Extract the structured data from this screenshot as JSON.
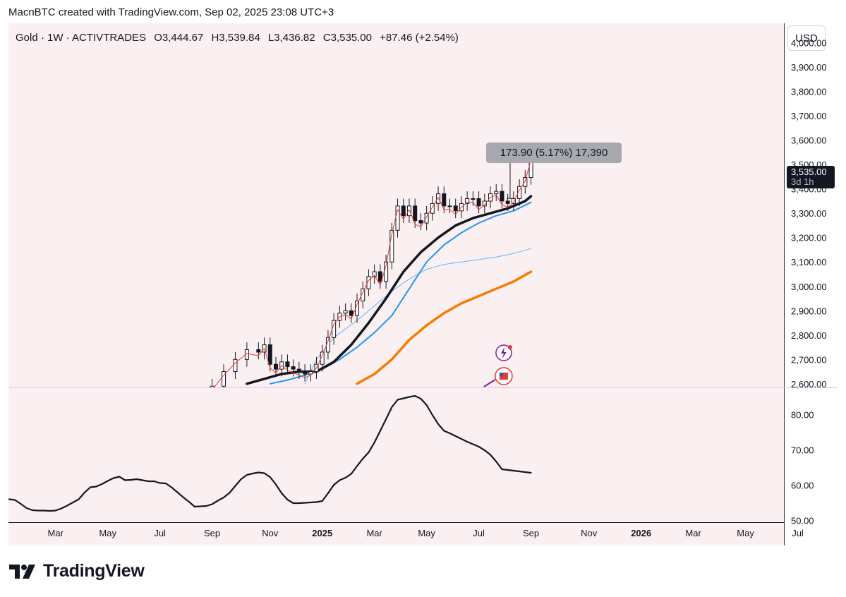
{
  "header": {
    "text": "MacnBTC created with TradingView.com, Sep 02, 2025 23:08 UTC+3"
  },
  "legend": {
    "symbol": "Gold · 1W · ACTIVTRADES",
    "open": "O3,444.67",
    "high": "H3,539.84",
    "low": "L3,436.82",
    "close": "C3,535.00",
    "change": "+87.46 (+2.54%)"
  },
  "currency_button": "USD",
  "measure_label": "173.90 (5.17%) 17,390",
  "price_tag": {
    "price": "3,535.00",
    "countdown": "3d 1h"
  },
  "brand": "TradingView",
  "colors": {
    "background": "#fbf0f1",
    "ema_fast": "#131722",
    "ema_mid": "#2196f3",
    "ema_slow": "#f57c00",
    "ema_thin": "#64b5f6",
    "signal": "#e53935",
    "oscillator": "#131722",
    "marker": "#7b1fa2"
  },
  "chart_data": [
    {
      "type": "candlestick",
      "title": "Gold · 1W · ACTIVTRADES",
      "y_ticks": [
        "2,600.00",
        "2,700.00",
        "2,800.00",
        "2,900.00",
        "3,000.00",
        "3,100.00",
        "3,200.00",
        "3,300.00",
        "3,400.00",
        "3,500.00",
        "3,600.00",
        "3,700.00",
        "3,800.00",
        "3,900.00",
        "4,000.00"
      ],
      "ylim": [
        2585,
        4080
      ],
      "x_ticks": [
        "Mar",
        "May",
        "Jul",
        "Sep",
        "Nov",
        "2025",
        "Mar",
        "May",
        "Jul",
        "Sep",
        "Nov",
        "2026",
        "Mar",
        "May",
        "Jul"
      ],
      "x_tick_weeks": [
        8,
        17,
        26,
        35,
        45,
        54,
        63,
        72,
        81,
        90,
        100,
        109,
        118,
        127,
        136
      ],
      "close_series": {
        "weeks": [
          35,
          37,
          39,
          41,
          43,
          44,
          45,
          46,
          47,
          48,
          49,
          50,
          51,
          52,
          53,
          54,
          55,
          56,
          57,
          58,
          59,
          60,
          61,
          62,
          63,
          64,
          65,
          66,
          67,
          68,
          69,
          70,
          71,
          72,
          73,
          74,
          75,
          76,
          77,
          78,
          79,
          80,
          81,
          82,
          83,
          84,
          85,
          86,
          87,
          88,
          89,
          90
        ],
        "values": [
          2590,
          2650,
          2700,
          2740,
          2730,
          2760,
          2680,
          2660,
          2690,
          2670,
          2660,
          2650,
          2640,
          2650,
          2680,
          2730,
          2790,
          2860,
          2890,
          2900,
          2880,
          2940,
          2990,
          3040,
          3060,
          3020,
          3100,
          3230,
          3330,
          3290,
          3330,
          3270,
          3260,
          3300,
          3340,
          3380,
          3330,
          3330,
          3310,
          3340,
          3360,
          3360,
          3330,
          3350,
          3380,
          3390,
          3350,
          3340,
          3360,
          3410,
          3447,
          3535
        ]
      },
      "ema_fast": {
        "weeks": [
          41,
          44,
          47,
          50,
          53,
          56,
          59,
          62,
          65,
          68,
          71,
          74,
          77,
          80,
          83,
          86,
          89,
          90
        ],
        "values": [
          2600,
          2620,
          2640,
          2650,
          2650,
          2690,
          2760,
          2850,
          2950,
          3060,
          3140,
          3200,
          3250,
          3280,
          3300,
          3320,
          3350,
          3370
        ]
      },
      "ema_mid": {
        "weeks": [
          45,
          48,
          51,
          54,
          57,
          60,
          63,
          66,
          69,
          72,
          75,
          78,
          81,
          84,
          87,
          90
        ],
        "values": [
          2600,
          2615,
          2635,
          2660,
          2700,
          2750,
          2810,
          2880,
          2990,
          3100,
          3170,
          3220,
          3260,
          3290,
          3310,
          3345
        ]
      },
      "ema_thin": {
        "weeks": [
          51,
          53,
          56,
          60,
          63,
          66,
          69,
          72,
          75,
          78,
          81,
          84,
          87,
          90
        ],
        "values": [
          2600,
          2700,
          2790,
          2860,
          2920,
          2980,
          3030,
          3070,
          3090,
          3100,
          3110,
          3120,
          3135,
          3155
        ]
      },
      "ema_slow": {
        "weeks": [
          60,
          63,
          66,
          69,
          72,
          75,
          78,
          81,
          84,
          87,
          90
        ],
        "values": [
          2600,
          2640,
          2700,
          2780,
          2840,
          2890,
          2930,
          2960,
          2990,
          3020,
          3060
        ]
      },
      "measure_range": [
        3361,
        3535
      ]
    },
    {
      "type": "line",
      "title": "",
      "y_ticks": [
        "50.00",
        "60.00",
        "70.00",
        "80.00"
      ],
      "ylim": [
        49.5,
        87.5
      ],
      "weeks": [
        0,
        1,
        2,
        3,
        4,
        5,
        6,
        7,
        8,
        9,
        10,
        11,
        12,
        13,
        14,
        15,
        16,
        17,
        18,
        19,
        20,
        21,
        22,
        23,
        24,
        25,
        26,
        27,
        28,
        29,
        30,
        31,
        32,
        33,
        34,
        35,
        36,
        37,
        38,
        39,
        40,
        41,
        42,
        43,
        44,
        45,
        46,
        47,
        48,
        49,
        50,
        51,
        52,
        53,
        54,
        55,
        56,
        57,
        58,
        59,
        60,
        61,
        62,
        63,
        64,
        65,
        66,
        67,
        68,
        69,
        70,
        71,
        72,
        73,
        74,
        75,
        76,
        77,
        78,
        79,
        80,
        81,
        82,
        83,
        84,
        85,
        86,
        87,
        88,
        89,
        90
      ],
      "values": [
        56.0,
        55.8,
        54.7,
        53.5,
        52.9,
        52.8,
        52.8,
        52.7,
        52.8,
        53.4,
        54.2,
        55.1,
        56.0,
        57.9,
        59.4,
        59.6,
        60.3,
        61.2,
        62.0,
        62.4,
        61.4,
        61.5,
        61.7,
        61.4,
        61.1,
        61.1,
        60.6,
        60.5,
        59.4,
        58.0,
        56.6,
        55.3,
        53.9,
        54.0,
        54.1,
        54.6,
        55.6,
        56.5,
        57.8,
        59.8,
        61.7,
        62.9,
        63.3,
        63.6,
        63.4,
        62.3,
        60.2,
        57.7,
        55.9,
        54.9,
        54.9,
        55.0,
        55.1,
        55.2,
        55.5,
        57.7,
        60.1,
        61.4,
        62.1,
        63.2,
        65.4,
        67.5,
        69.3,
        72.1,
        75.4,
        78.7,
        82.1,
        84.2,
        84.6,
        85.0,
        85.3,
        84.5,
        82.7,
        79.9,
        77.3,
        75.4,
        74.7,
        73.9,
        73.1,
        72.3,
        71.6,
        70.9,
        69.9,
        68.6,
        66.7,
        64.5,
        64.3,
        64.1,
        63.9,
        63.7,
        63.5
      ]
    }
  ]
}
